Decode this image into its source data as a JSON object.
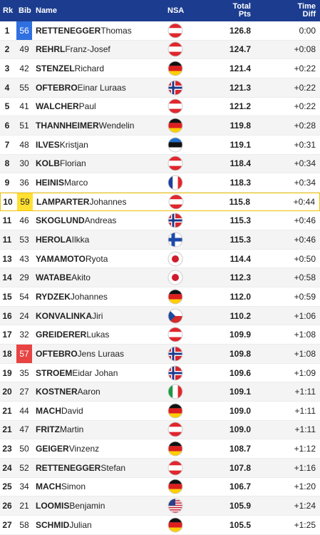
{
  "header": {
    "rk": "Rk",
    "bib": "Bib",
    "name": "Name",
    "nsa": "NSA",
    "pts": [
      "Total",
      "Pts"
    ],
    "diff": [
      "Time",
      "Diff"
    ]
  },
  "rows": [
    [
      1,
      56,
      "RETTENEGGER",
      "Thomas",
      "126.8",
      "0:00"
    ],
    [
      2,
      49,
      "REHRL",
      "Franz-Josef",
      "124.7",
      "+0:08"
    ],
    [
      3,
      42,
      "STENZEL",
      "Richard",
      "121.4",
      "+0:22"
    ],
    [
      4,
      55,
      "OFTEBRO",
      "Einar Luraas",
      "121.3",
      "+0:22"
    ],
    [
      5,
      41,
      "WALCHER",
      "Paul",
      "121.2",
      "+0:22"
    ],
    [
      6,
      51,
      "THANNHEIMER",
      "Wendelin",
      "119.8",
      "+0:28"
    ],
    [
      7,
      48,
      "ILVES",
      "Kristjan",
      "119.1",
      "+0:31"
    ],
    [
      8,
      30,
      "KOLB",
      "Florian",
      "118.4",
      "+0:34"
    ],
    [
      9,
      36,
      "HEINIS",
      "Marco",
      "118.3",
      "+0:34"
    ],
    [
      10,
      59,
      "LAMPARTER",
      "Johannes",
      "115.8",
      "+0:44"
    ],
    [
      11,
      46,
      "SKOGLUND",
      "Andreas",
      "115.3",
      "+0:46"
    ],
    [
      11,
      53,
      "HEROLA",
      "Ilkka",
      "115.3",
      "+0:46"
    ],
    [
      13,
      43,
      "YAMAMOTO",
      "Ryota",
      "114.4",
      "+0:50"
    ],
    [
      14,
      29,
      "WATABE",
      "Akito",
      "112.3",
      "+0:58"
    ],
    [
      15,
      54,
      "RYDZEK",
      "Johannes",
      "112.0",
      "+0:59"
    ],
    [
      16,
      24,
      "KONVALINKA",
      "Jiri",
      "110.2",
      "+1:06"
    ],
    [
      17,
      32,
      "GREIDERER",
      "Lukas",
      "109.9",
      "+1:08"
    ],
    [
      18,
      57,
      "OFTEBRO",
      "Jens Luraas",
      "109.8",
      "+1:08"
    ],
    [
      19,
      35,
      "STROEM",
      "Eidar Johan",
      "109.6",
      "+1:09"
    ],
    [
      20,
      27,
      "KOSTNER",
      "Aaron",
      "109.1",
      "+1:11"
    ],
    [
      21,
      44,
      "MACH",
      "David",
      "109.0",
      "+1:11"
    ],
    [
      21,
      47,
      "FRITZ",
      "Martin",
      "109.0",
      "+1:11"
    ],
    [
      23,
      50,
      "GEIGER",
      "Vinzenz",
      "108.7",
      "+1:12"
    ],
    [
      24,
      52,
      "RETTENEGGER",
      "Stefan",
      "107.8",
      "+1:16"
    ],
    [
      25,
      34,
      "MACH",
      "Simon",
      "106.7",
      "+1:20"
    ],
    [
      26,
      21,
      "LOOMIS",
      "Benjamin",
      "105.9",
      "+1:24"
    ],
    [
      27,
      58,
      "SCHMID",
      "Julian",
      "105.5",
      "+1:25"
    ]
  ]
}
